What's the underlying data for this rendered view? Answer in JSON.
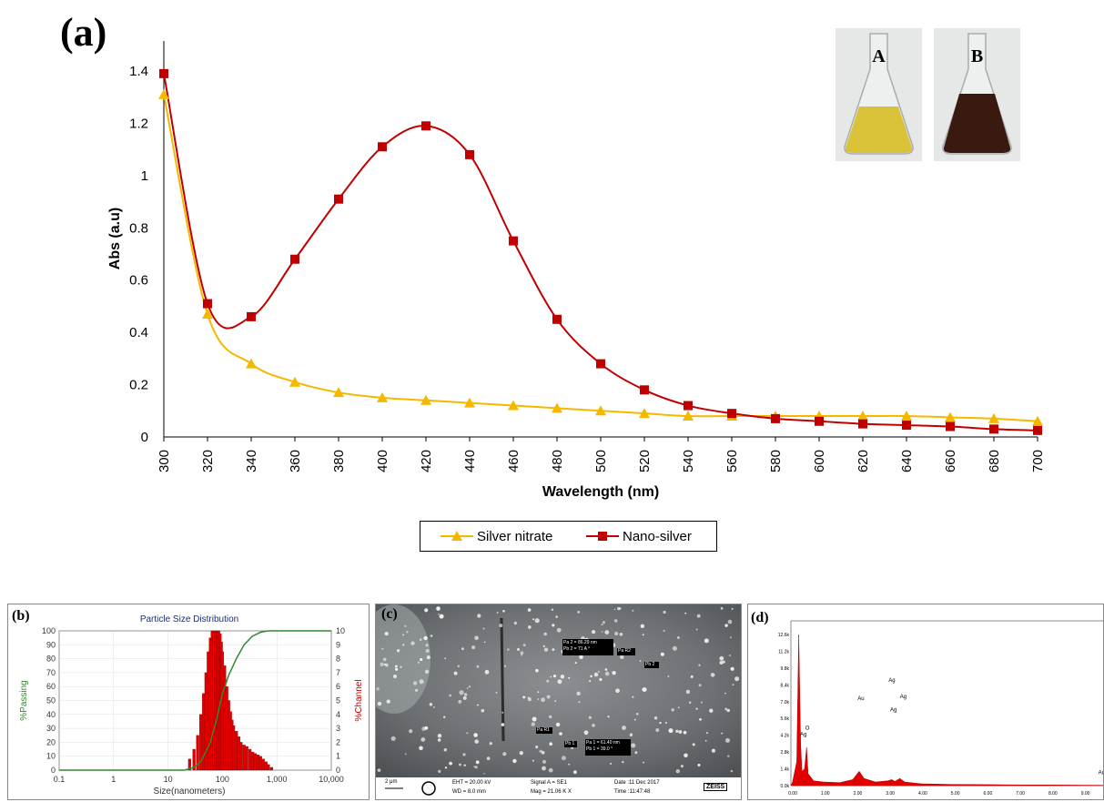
{
  "panel_a": {
    "label": "(a)",
    "flask_a_label": "A",
    "flask_b_label": "B",
    "flask_a_color": "#d9c237",
    "flask_b_color": "#3a1a10"
  },
  "chart_data": [
    {
      "type": "line",
      "title": "",
      "xlabel": "Wavelength (nm)",
      "ylabel": "Abs (a.u)",
      "x": [
        300,
        320,
        340,
        360,
        380,
        400,
        420,
        440,
        460,
        480,
        500,
        520,
        540,
        560,
        580,
        600,
        620,
        640,
        660,
        680,
        700
      ],
      "xlim": [
        300,
        700
      ],
      "ylim": [
        0,
        1.4
      ],
      "y_ticks": [
        "0",
        "0.2",
        "0.4",
        "0.6",
        "0.8",
        "1",
        "1.2",
        "1.4"
      ],
      "x_ticks": [
        "300",
        "320",
        "340",
        "360",
        "380",
        "400",
        "420",
        "440",
        "460",
        "480",
        "500",
        "520",
        "540",
        "560",
        "580",
        "600",
        "620",
        "640",
        "660",
        "680",
        "700"
      ],
      "legend_position": "bottom",
      "series": [
        {
          "name": "Silver nitrate",
          "color": "#f5b800",
          "marker": "triangle",
          "values": [
            1.31,
            0.47,
            0.28,
            0.21,
            0.17,
            0.15,
            0.14,
            0.13,
            0.12,
            0.11,
            0.1,
            0.09,
            0.08,
            0.08,
            0.08,
            0.08,
            0.08,
            0.08,
            0.075,
            0.07,
            0.06
          ]
        },
        {
          "name": "Nano-silver",
          "color": "#c00000",
          "marker": "square",
          "values": [
            1.39,
            0.51,
            0.46,
            0.68,
            0.91,
            1.11,
            1.19,
            1.08,
            0.75,
            0.45,
            0.28,
            0.18,
            0.12,
            0.09,
            0.07,
            0.06,
            0.05,
            0.045,
            0.04,
            0.03,
            0.025
          ]
        }
      ]
    },
    {
      "type": "bar",
      "panel_label": "(b)",
      "title": "Particle Size Distribution",
      "xlabel": "Size(nanometers)",
      "ylabel": "%Passing",
      "ylabel_right": "%Channel",
      "x_ticks": [
        "0.1",
        "1",
        "10",
        "100",
        "1,000",
        "10,000"
      ],
      "y_ticks_left": [
        "0",
        "10",
        "20",
        "30",
        "40",
        "50",
        "60",
        "70",
        "80",
        "90",
        "100"
      ],
      "y_ticks_right": [
        "0",
        "1",
        "2",
        "3",
        "4",
        "5",
        "6",
        "7",
        "8",
        "9",
        "10"
      ],
      "bar_sizes": [
        25,
        30,
        35,
        40,
        45,
        50,
        55,
        60,
        65,
        70,
        75,
        80,
        85,
        90,
        95,
        100,
        110,
        120,
        130,
        140,
        150,
        160,
        180,
        200,
        220,
        250,
        280,
        320,
        360,
        400,
        450,
        500,
        560,
        630,
        700,
        800
      ],
      "bar_values": [
        0.8,
        1.5,
        2.5,
        4.0,
        5.5,
        7.0,
        8.5,
        9.5,
        10,
        10,
        10,
        10,
        10,
        9.8,
        9.2,
        8.5,
        7.5,
        6.0,
        5.0,
        4.2,
        3.6,
        3.2,
        2.8,
        2.4,
        2.0,
        1.8,
        1.7,
        1.5,
        1.3,
        1.2,
        1.1,
        1.0,
        0.8,
        0.6,
        0.4,
        0.2
      ],
      "passing_x": [
        0.1,
        10,
        20,
        30,
        40,
        60,
        80,
        100,
        130,
        180,
        250,
        350,
        500,
        700,
        1000,
        2000,
        10000
      ],
      "passing_y": [
        0,
        0,
        0,
        2,
        6,
        20,
        38,
        55,
        68,
        80,
        90,
        96,
        99,
        100,
        100,
        100,
        100
      ],
      "bar_color": "#e00000",
      "line_color": "#2e8b2e"
    },
    {
      "type": "line",
      "panel_label": "(d)",
      "y_ticks": [
        "0.0k",
        "1.4k",
        "2.8k",
        "4.2k",
        "5.6k",
        "7.0k",
        "8.4k",
        "9.8k",
        "11.2k",
        "12.6k"
      ],
      "x_ticks": [
        "0.00",
        "1.00",
        "2.00",
        "3.00",
        "4.00",
        "5.00",
        "6.00",
        "7.00",
        "8.00",
        "9.00"
      ],
      "peak_labels": [
        "Ag",
        "O",
        "Au",
        "Ag",
        "Ag",
        "Ag",
        "Au"
      ],
      "fill_color": "#e00000"
    }
  ],
  "panel_c": {
    "label": "(c)",
    "measure_box_1": "Pa 2 = 86.29 nm\nPb 2 = 71 A °",
    "measure_box_2": "Pa 1 = 61.40 nm\nPb 1 = 39.0 °",
    "tag_pa2": "Pa R2",
    "tag_pb2": "Pb 2",
    "tag_pa1": "Pa R1",
    "tag_pb1": "Pb 1",
    "scale": "2 μm",
    "eht": "EHT = 20.00 kV",
    "wd": "WD = 8.0 mm",
    "signal": "Signal A = SE1",
    "mag": "Mag = 21.06 K X",
    "date": "Date :11 Dec 2017",
    "time": "Time :11:47:48",
    "brand": "ZEISS"
  }
}
